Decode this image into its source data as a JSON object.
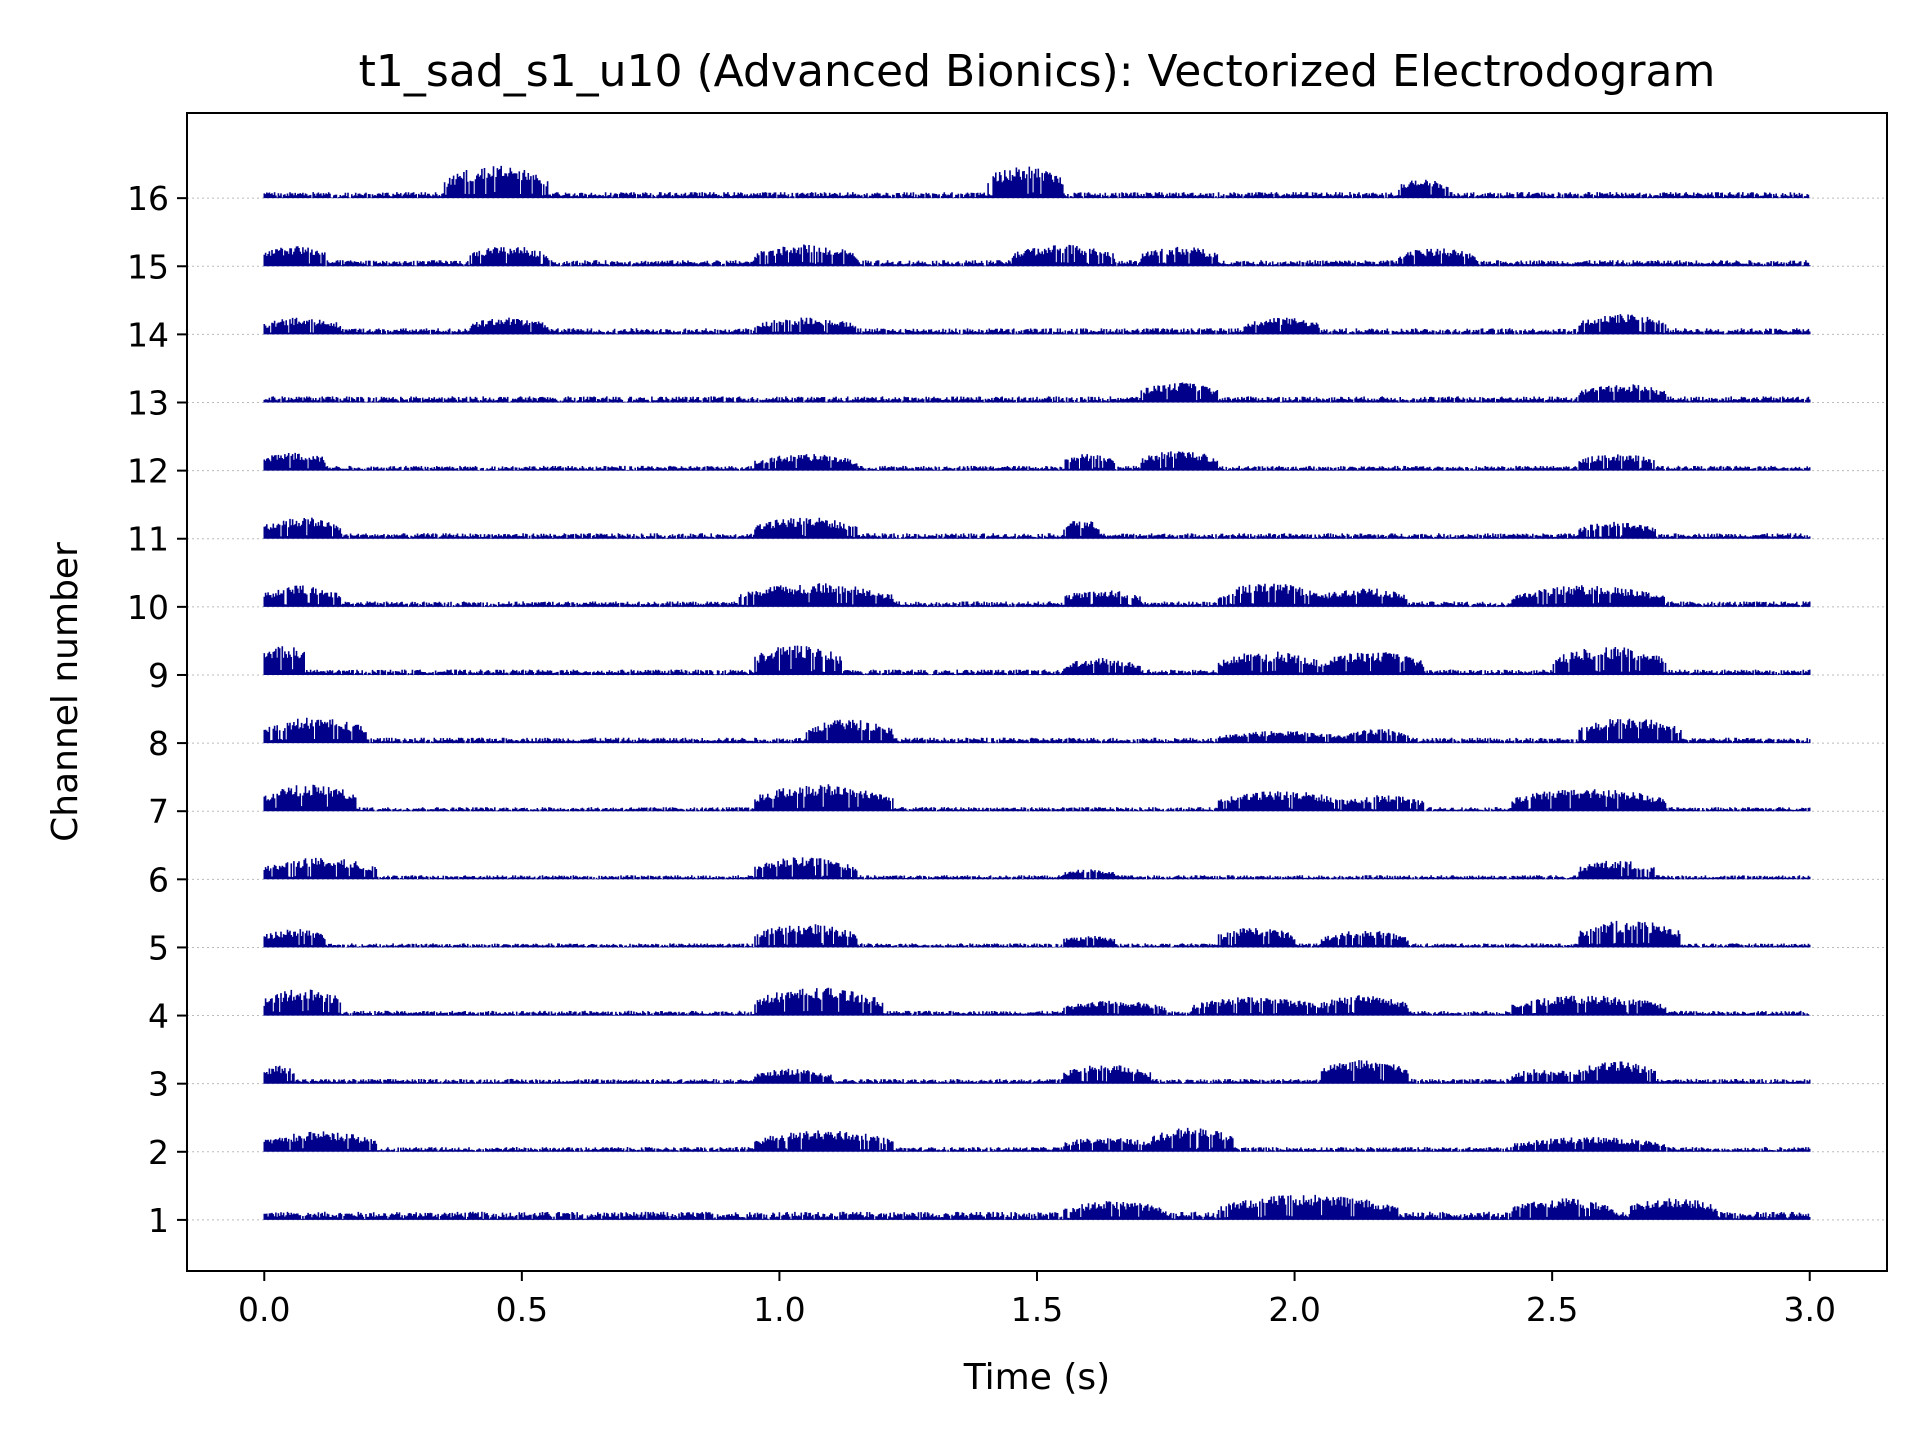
{
  "chart_data": {
    "type": "line",
    "title": "t1_sad_s1_u10 (Advanced Bionics): Vectorized Electrodogram",
    "xlabel": "Time (s)",
    "ylabel": "Channel number",
    "xlim": [
      -0.15,
      3.15
    ],
    "ylim": [
      0.25,
      17.25
    ],
    "xticks": [
      "0.0",
      "0.5",
      "1.0",
      "1.5",
      "2.0",
      "2.5",
      "3.0"
    ],
    "yticks": [
      "1",
      "2",
      "3",
      "4",
      "5",
      "6",
      "7",
      "8",
      "9",
      "10",
      "11",
      "12",
      "13",
      "14",
      "15",
      "16"
    ],
    "grid": "horizontal dotted at channel baselines",
    "color": "#00008b",
    "duration_s": 3.0,
    "channels": [
      {
        "channel": 1,
        "base": 0.12,
        "active": [
          [
            1.55,
            1.75,
            0.28
          ],
          [
            1.85,
            2.2,
            0.38
          ],
          [
            2.42,
            2.62,
            0.32
          ],
          [
            2.65,
            2.82,
            0.33
          ]
        ]
      },
      {
        "channel": 2,
        "base": 0.07,
        "active": [
          [
            0.0,
            0.22,
            0.3
          ],
          [
            0.95,
            1.22,
            0.32
          ],
          [
            1.55,
            1.72,
            0.22
          ],
          [
            1.72,
            1.88,
            0.36
          ],
          [
            2.42,
            2.72,
            0.22
          ]
        ]
      },
      {
        "channel": 3,
        "base": 0.07,
        "active": [
          [
            0.0,
            0.06,
            0.28
          ],
          [
            0.95,
            1.1,
            0.22
          ],
          [
            1.55,
            1.72,
            0.28
          ],
          [
            2.05,
            2.22,
            0.35
          ],
          [
            2.42,
            2.55,
            0.22
          ],
          [
            2.55,
            2.7,
            0.33
          ]
        ]
      },
      {
        "channel": 4,
        "base": 0.07,
        "active": [
          [
            0.0,
            0.15,
            0.4
          ],
          [
            0.95,
            1.2,
            0.42
          ],
          [
            1.55,
            1.75,
            0.22
          ],
          [
            1.8,
            2.05,
            0.28
          ],
          [
            2.05,
            2.22,
            0.3
          ],
          [
            2.42,
            2.72,
            0.3
          ]
        ]
      },
      {
        "channel": 5,
        "base": 0.06,
        "active": [
          [
            0.0,
            0.12,
            0.28
          ],
          [
            0.95,
            1.15,
            0.35
          ],
          [
            1.55,
            1.65,
            0.18
          ],
          [
            1.85,
            2.0,
            0.3
          ],
          [
            2.05,
            2.22,
            0.25
          ],
          [
            2.55,
            2.75,
            0.4
          ]
        ]
      },
      {
        "channel": 6,
        "base": 0.06,
        "active": [
          [
            0.0,
            0.22,
            0.32
          ],
          [
            0.95,
            1.15,
            0.33
          ],
          [
            1.55,
            1.65,
            0.15
          ],
          [
            2.55,
            2.7,
            0.28
          ]
        ]
      },
      {
        "channel": 7,
        "base": 0.06,
        "active": [
          [
            0.0,
            0.18,
            0.4
          ],
          [
            0.95,
            1.22,
            0.4
          ],
          [
            1.85,
            2.1,
            0.3
          ],
          [
            2.1,
            2.25,
            0.24
          ],
          [
            2.42,
            2.72,
            0.34
          ]
        ]
      },
      {
        "channel": 8,
        "base": 0.08,
        "active": [
          [
            0.0,
            0.2,
            0.38
          ],
          [
            1.05,
            1.22,
            0.35
          ],
          [
            1.85,
            2.1,
            0.18
          ],
          [
            2.1,
            2.22,
            0.22
          ],
          [
            2.55,
            2.75,
            0.38
          ]
        ]
      },
      {
        "channel": 9,
        "base": 0.08,
        "active": [
          [
            0.0,
            0.08,
            0.45
          ],
          [
            0.95,
            1.12,
            0.45
          ],
          [
            1.55,
            1.7,
            0.25
          ],
          [
            1.85,
            2.05,
            0.35
          ],
          [
            2.05,
            2.25,
            0.35
          ],
          [
            2.5,
            2.72,
            0.42
          ]
        ]
      },
      {
        "channel": 10,
        "base": 0.08,
        "active": [
          [
            0.0,
            0.15,
            0.32
          ],
          [
            0.92,
            1.22,
            0.35
          ],
          [
            1.55,
            1.7,
            0.25
          ],
          [
            1.85,
            2.05,
            0.35
          ],
          [
            2.05,
            2.22,
            0.28
          ],
          [
            2.42,
            2.72,
            0.32
          ]
        ]
      },
      {
        "channel": 11,
        "base": 0.08,
        "active": [
          [
            0.0,
            0.15,
            0.32
          ],
          [
            0.95,
            1.15,
            0.32
          ],
          [
            1.55,
            1.62,
            0.28
          ],
          [
            2.55,
            2.7,
            0.25
          ]
        ]
      },
      {
        "channel": 12,
        "base": 0.07,
        "active": [
          [
            0.0,
            0.12,
            0.28
          ],
          [
            0.95,
            1.15,
            0.25
          ],
          [
            1.55,
            1.65,
            0.25
          ],
          [
            1.7,
            1.85,
            0.3
          ],
          [
            2.55,
            2.7,
            0.25
          ]
        ]
      },
      {
        "channel": 13,
        "base": 0.09,
        "active": [
          [
            1.7,
            1.85,
            0.3
          ],
          [
            2.55,
            2.72,
            0.28
          ]
        ]
      },
      {
        "channel": 14,
        "base": 0.09,
        "active": [
          [
            0.0,
            0.15,
            0.25
          ],
          [
            0.4,
            0.55,
            0.25
          ],
          [
            0.95,
            1.15,
            0.25
          ],
          [
            1.9,
            2.05,
            0.25
          ],
          [
            2.55,
            2.72,
            0.3
          ]
        ]
      },
      {
        "channel": 15,
        "base": 0.09,
        "active": [
          [
            0.0,
            0.12,
            0.3
          ],
          [
            0.4,
            0.55,
            0.3
          ],
          [
            0.95,
            1.15,
            0.32
          ],
          [
            1.45,
            1.65,
            0.32
          ],
          [
            1.7,
            1.85,
            0.3
          ],
          [
            2.2,
            2.35,
            0.27
          ]
        ]
      },
      {
        "channel": 16,
        "base": 0.09,
        "active": [
          [
            0.35,
            0.55,
            0.48
          ],
          [
            1.4,
            1.55,
            0.48
          ],
          [
            2.2,
            2.3,
            0.28
          ]
        ]
      }
    ]
  }
}
